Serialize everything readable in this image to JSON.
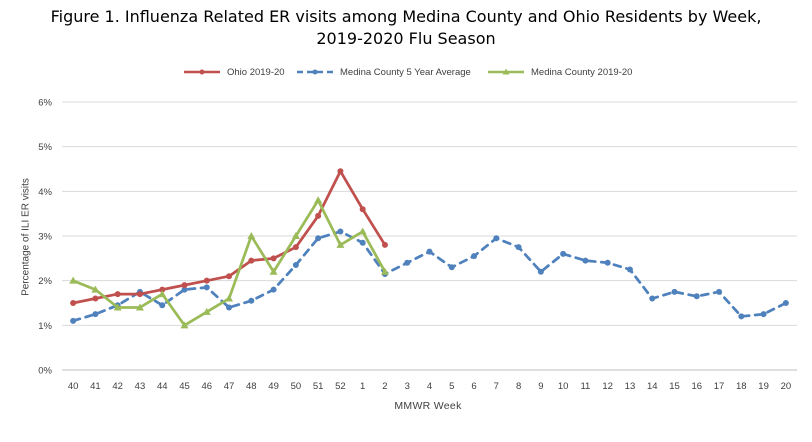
{
  "header": {
    "title_line1": "Figure 1. Influenza Related ER visits among Medina County and Ohio Residents by Week,",
    "title_line2": "2019-2020 Flu Season"
  },
  "chart_data": {
    "type": "line",
    "title": "Figure 1. Influenza Related ER visits among Medina County and Ohio Residents by Week, 2019-2020 Flu Season",
    "xlabel": "MMWR Week",
    "ylabel": "Percentage of ILI ER visits",
    "categories": [
      "40",
      "41",
      "42",
      "43",
      "44",
      "45",
      "46",
      "47",
      "48",
      "49",
      "50",
      "51",
      "52",
      "1",
      "2",
      "3",
      "4",
      "5",
      "6",
      "7",
      "8",
      "9",
      "10",
      "11",
      "12",
      "13",
      "14",
      "15",
      "16",
      "17",
      "18",
      "19",
      "20"
    ],
    "ylim": [
      0,
      6
    ],
    "yticks": [
      "0%",
      "1%",
      "2%",
      "3%",
      "4%",
      "5%",
      "6%"
    ],
    "grid": true,
    "legend_position": "top",
    "series": [
      {
        "name": "Ohio 2019-20",
        "color": "#C0504D",
        "style": "solid",
        "marker": "circle",
        "values": [
          1.5,
          1.6,
          1.7,
          1.7,
          1.8,
          1.9,
          2.0,
          2.1,
          2.45,
          2.5,
          2.75,
          3.45,
          4.45,
          3.6,
          2.8,
          null,
          null,
          null,
          null,
          null,
          null,
          null,
          null,
          null,
          null,
          null,
          null,
          null,
          null,
          null,
          null,
          null,
          null
        ]
      },
      {
        "name": "Medina County 5 Year Average",
        "color": "#4F81BD",
        "style": "dashed",
        "marker": "circle",
        "values": [
          1.1,
          1.25,
          1.45,
          1.75,
          1.45,
          1.8,
          1.85,
          1.4,
          1.55,
          1.8,
          2.35,
          2.95,
          3.1,
          2.85,
          2.15,
          2.4,
          2.65,
          2.3,
          2.55,
          2.95,
          2.75,
          2.2,
          2.6,
          2.45,
          2.4,
          2.25,
          1.6,
          1.75,
          1.65,
          1.75,
          1.2,
          1.25,
          1.5
        ]
      },
      {
        "name": "Medina County 2019-20",
        "color": "#9BBB59",
        "style": "solid",
        "marker": "triangle",
        "values": [
          2.0,
          1.8,
          1.4,
          1.4,
          1.7,
          1.0,
          1.3,
          1.6,
          3.0,
          2.2,
          3.0,
          3.8,
          2.8,
          3.1,
          2.2,
          null,
          null,
          null,
          null,
          null,
          null,
          null,
          null,
          null,
          null,
          null,
          null,
          null,
          null,
          null,
          null,
          null,
          null
        ]
      }
    ]
  }
}
